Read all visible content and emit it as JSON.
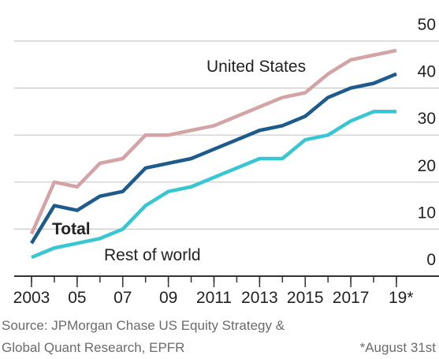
{
  "chart_data": {
    "type": "line",
    "x": [
      2003,
      2004,
      2005,
      2006,
      2007,
      2008,
      2009,
      2010,
      2011,
      2012,
      2013,
      2014,
      2015,
      2016,
      2017,
      2018,
      2019
    ],
    "series": [
      {
        "name": "United States",
        "color": "#d4a3a5",
        "values": [
          9,
          20,
          19,
          24,
          25,
          30,
          30,
          31,
          32,
          34,
          36,
          38,
          39,
          43,
          46,
          47,
          48
        ]
      },
      {
        "name": "Total",
        "color": "#1d5b8c",
        "values": [
          7,
          15,
          14,
          17,
          18,
          23,
          24,
          25,
          27,
          29,
          31,
          32,
          34,
          38,
          40,
          41,
          43
        ]
      },
      {
        "name": "Rest of world",
        "color": "#38c6d3",
        "values": [
          4,
          6,
          7,
          8,
          10,
          15,
          18,
          19,
          21,
          23,
          25,
          25,
          29,
          30,
          33,
          35,
          35
        ]
      }
    ],
    "xlim": [
      2003,
      2019
    ],
    "xticks": [
      {
        "value": 2003,
        "label": "2003"
      },
      {
        "value": 2005,
        "label": "05"
      },
      {
        "value": 2007,
        "label": "07"
      },
      {
        "value": 2009,
        "label": "09"
      },
      2011,
      2013,
      2015,
      2017,
      {
        "value": 2019,
        "label": "19*"
      }
    ],
    "ylim": [
      0,
      50
    ],
    "yticks": [
      0,
      10,
      20,
      30,
      40,
      50
    ],
    "grid": true,
    "source": [
      "Source: JPMorgan Chase US Equity Strategy &",
      "Global Quant Research, EPFR"
    ],
    "note": "*August 31st"
  }
}
